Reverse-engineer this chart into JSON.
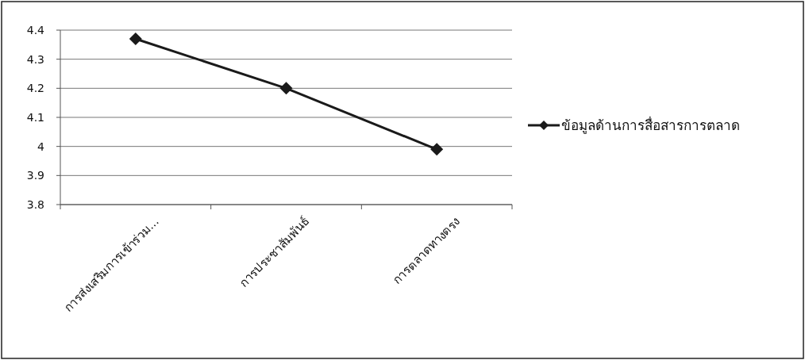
{
  "chart_data": {
    "type": "line",
    "categories": [
      "การส่งเสริมการเข้าร่วม...",
      "การประชาสัมพันธ์",
      "การตลาดทางตรง"
    ],
    "series": [
      {
        "name": "ข้อมูลด้านการสื่อสารการตลาด",
        "color": "#1a1a1a",
        "values": [
          4.37,
          4.2,
          3.99
        ]
      }
    ],
    "ylim": [
      3.8,
      4.4
    ],
    "yticks": [
      3.8,
      3.9,
      4,
      4.1,
      4.2,
      4.3,
      4.4
    ],
    "grid": "y",
    "legend": "right",
    "marker": "diamond",
    "line_style": "solid"
  }
}
